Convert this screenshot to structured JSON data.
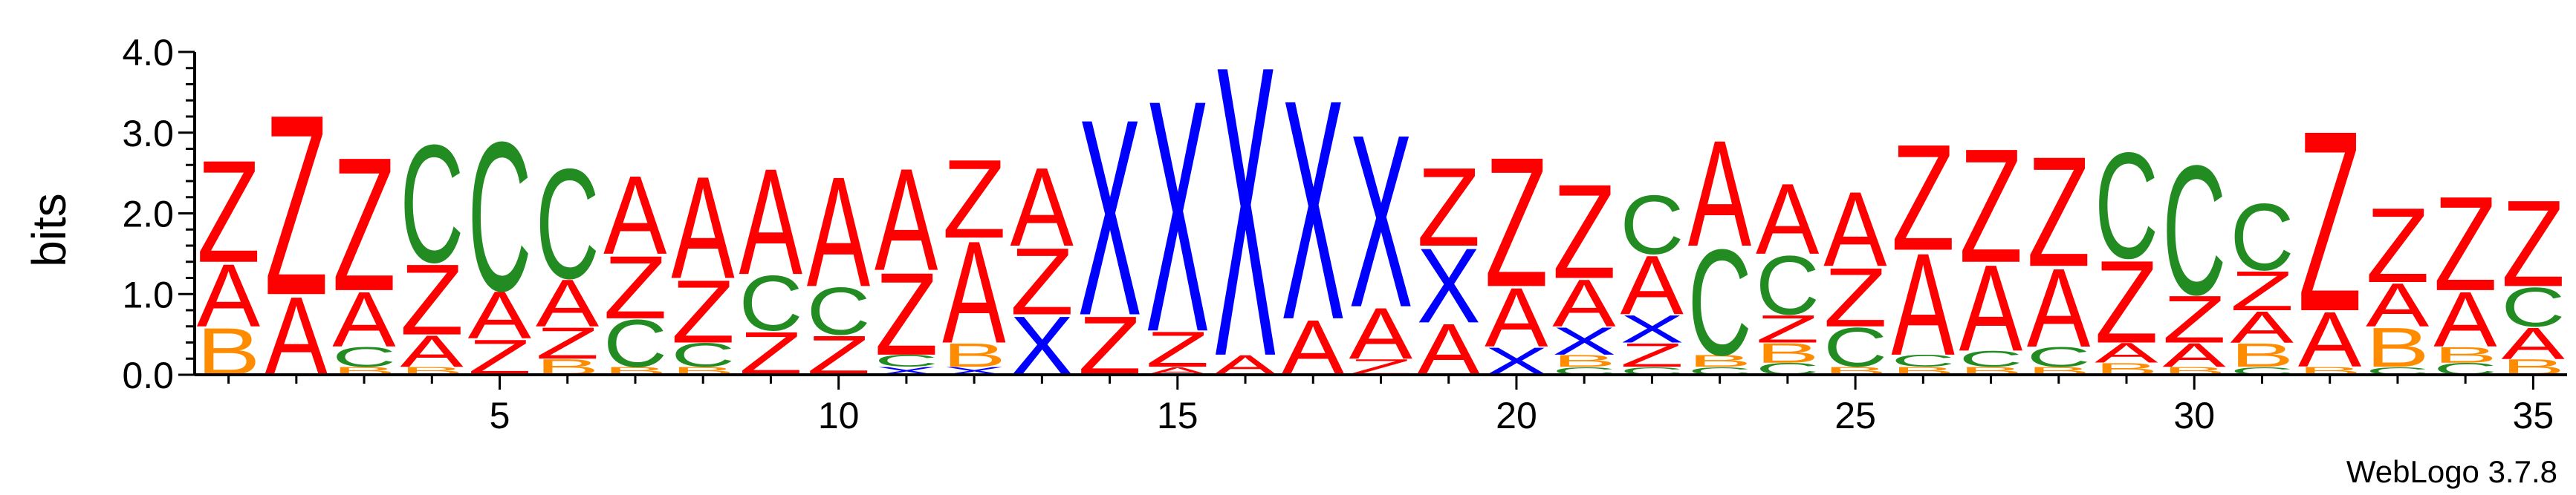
{
  "chart_data": {
    "type": "sequence_logo",
    "ylabel": "bits",
    "ylim": [
      0,
      4.0
    ],
    "y_ticks": [
      {
        "value": 0.0,
        "label": "0.0"
      },
      {
        "value": 1.0,
        "label": "1.0"
      },
      {
        "value": 2.0,
        "label": "2.0"
      },
      {
        "value": 3.0,
        "label": "3.0"
      },
      {
        "value": 4.0,
        "label": "4.0"
      }
    ],
    "x_ticks": [
      5,
      10,
      15,
      20,
      25,
      30,
      35
    ],
    "x_tick_labels": [
      "5",
      "10",
      "15",
      "20",
      "25",
      "30",
      "35"
    ],
    "colors": {
      "Z": "#ff0000",
      "A": "#ff0000",
      "X": "#0000ff",
      "C": "#228b22",
      "B": "#ff8c00"
    },
    "positions": [
      {
        "pos": 1,
        "stack": [
          {
            "l": "B",
            "h": 0.6
          },
          {
            "l": "A",
            "h": 0.8
          },
          {
            "l": "Z",
            "h": 1.3
          }
        ]
      },
      {
        "pos": 2,
        "stack": [
          {
            "l": "A",
            "h": 1.0
          },
          {
            "l": "Z",
            "h": 2.3
          }
        ]
      },
      {
        "pos": 3,
        "stack": [
          {
            "l": "B",
            "h": 0.1
          },
          {
            "l": "C",
            "h": 0.25
          },
          {
            "l": "A",
            "h": 0.7
          },
          {
            "l": "Z",
            "h": 1.7
          }
        ]
      },
      {
        "pos": 4,
        "stack": [
          {
            "l": "B",
            "h": 0.1
          },
          {
            "l": "A",
            "h": 0.4
          },
          {
            "l": "Z",
            "h": 0.9
          },
          {
            "l": "C",
            "h": 1.5
          }
        ]
      },
      {
        "pos": 5,
        "stack": [
          {
            "l": "Z",
            "h": 0.45
          },
          {
            "l": "A",
            "h": 0.6
          },
          {
            "l": "C",
            "h": 1.9
          }
        ]
      },
      {
        "pos": 6,
        "stack": [
          {
            "l": "B",
            "h": 0.2
          },
          {
            "l": "Z",
            "h": 0.4
          },
          {
            "l": "A",
            "h": 0.6
          },
          {
            "l": "C",
            "h": 1.4
          }
        ]
      },
      {
        "pos": 7,
        "stack": [
          {
            "l": "B",
            "h": 0.1
          },
          {
            "l": "C",
            "h": 0.6
          },
          {
            "l": "Z",
            "h": 0.8
          },
          {
            "l": "A",
            "h": 1.0
          }
        ]
      },
      {
        "pos": 8,
        "stack": [
          {
            "l": "B",
            "h": 0.1
          },
          {
            "l": "C",
            "h": 0.3
          },
          {
            "l": "Z",
            "h": 0.8
          },
          {
            "l": "A",
            "h": 1.3
          }
        ]
      },
      {
        "pos": 9,
        "stack": [
          {
            "l": "Z",
            "h": 0.55
          },
          {
            "l": "C",
            "h": 0.7
          },
          {
            "l": "A",
            "h": 1.35
          }
        ]
      },
      {
        "pos": 10,
        "stack": [
          {
            "l": "Z",
            "h": 0.5
          },
          {
            "l": "C",
            "h": 0.6
          },
          {
            "l": "A",
            "h": 1.4
          }
        ]
      },
      {
        "pos": 11,
        "stack": [
          {
            "l": "X",
            "h": 0.1
          },
          {
            "l": "C",
            "h": 0.15
          },
          {
            "l": "Z",
            "h": 1.05
          },
          {
            "l": "A",
            "h": 1.3
          }
        ]
      },
      {
        "pos": 12,
        "stack": [
          {
            "l": "X",
            "h": 0.1
          },
          {
            "l": "B",
            "h": 0.3
          },
          {
            "l": "A",
            "h": 1.3
          },
          {
            "l": "Z",
            "h": 1.0
          }
        ]
      },
      {
        "pos": 13,
        "stack": [
          {
            "l": "X",
            "h": 0.75
          },
          {
            "l": "Z",
            "h": 0.85
          },
          {
            "l": "A",
            "h": 1.0
          }
        ]
      },
      {
        "pos": 14,
        "stack": [
          {
            "l": "Z",
            "h": 0.75
          },
          {
            "l": "X",
            "h": 2.5
          }
        ]
      },
      {
        "pos": 15,
        "stack": [
          {
            "l": "A",
            "h": 0.1
          },
          {
            "l": "Z",
            "h": 0.45
          },
          {
            "l": "X",
            "h": 2.95
          }
        ]
      },
      {
        "pos": 16,
        "stack": [
          {
            "l": "A",
            "h": 0.25
          },
          {
            "l": "X",
            "h": 3.7
          }
        ]
      },
      {
        "pos": 17,
        "stack": [
          {
            "l": "A",
            "h": 0.7
          },
          {
            "l": "X",
            "h": 2.8
          }
        ]
      },
      {
        "pos": 18,
        "stack": [
          {
            "l": "Z",
            "h": 0.2
          },
          {
            "l": "A",
            "h": 0.65
          },
          {
            "l": "X",
            "h": 2.2
          }
        ]
      },
      {
        "pos": 19,
        "stack": [
          {
            "l": "A",
            "h": 0.65
          },
          {
            "l": "X",
            "h": 0.95
          },
          {
            "l": "Z",
            "h": 1.0
          }
        ]
      },
      {
        "pos": 20,
        "stack": [
          {
            "l": "X",
            "h": 0.35
          },
          {
            "l": "A",
            "h": 0.75
          },
          {
            "l": "Z",
            "h": 1.65
          }
        ]
      },
      {
        "pos": 21,
        "stack": [
          {
            "l": "C",
            "h": 0.1
          },
          {
            "l": "B",
            "h": 0.15
          },
          {
            "l": "X",
            "h": 0.35
          },
          {
            "l": "A",
            "h": 0.6
          },
          {
            "l": "Z",
            "h": 1.2
          }
        ]
      },
      {
        "pos": 22,
        "stack": [
          {
            "l": "C",
            "h": 0.1
          },
          {
            "l": "Z",
            "h": 0.3
          },
          {
            "l": "X",
            "h": 0.35
          },
          {
            "l": "A",
            "h": 0.75
          },
          {
            "l": "C",
            "h": 0.75
          }
        ]
      },
      {
        "pos": 23,
        "stack": [
          {
            "l": "C",
            "h": 0.1
          },
          {
            "l": "B",
            "h": 0.15
          },
          {
            "l": "C",
            "h": 1.35
          },
          {
            "l": "A",
            "h": 1.35
          }
        ]
      },
      {
        "pos": 24,
        "stack": [
          {
            "l": "C",
            "h": 0.15
          },
          {
            "l": "B",
            "h": 0.25
          },
          {
            "l": "Z",
            "h": 0.35
          },
          {
            "l": "C",
            "h": 0.75
          },
          {
            "l": "A",
            "h": 0.9
          }
        ]
      },
      {
        "pos": 25,
        "stack": [
          {
            "l": "B",
            "h": 0.1
          },
          {
            "l": "C",
            "h": 0.5
          },
          {
            "l": "Z",
            "h": 0.75
          },
          {
            "l": "A",
            "h": 0.95
          }
        ]
      },
      {
        "pos": 26,
        "stack": [
          {
            "l": "B",
            "h": 0.1
          },
          {
            "l": "C",
            "h": 0.15
          },
          {
            "l": "A",
            "h": 1.3
          },
          {
            "l": "Z",
            "h": 1.35
          }
        ]
      },
      {
        "pos": 27,
        "stack": [
          {
            "l": "B",
            "h": 0.1
          },
          {
            "l": "C",
            "h": 0.2
          },
          {
            "l": "A",
            "h": 1.1
          },
          {
            "l": "Z",
            "h": 1.45
          }
        ]
      },
      {
        "pos": 28,
        "stack": [
          {
            "l": "B",
            "h": 0.1
          },
          {
            "l": "C",
            "h": 0.25
          },
          {
            "l": "A",
            "h": 1.0
          },
          {
            "l": "Z",
            "h": 1.4
          }
        ]
      },
      {
        "pos": 29,
        "stack": [
          {
            "l": "B",
            "h": 0.15
          },
          {
            "l": "A",
            "h": 0.25
          },
          {
            "l": "Z",
            "h": 1.05
          },
          {
            "l": "C",
            "h": 1.35
          }
        ]
      },
      {
        "pos": 30,
        "stack": [
          {
            "l": "B",
            "h": 0.1
          },
          {
            "l": "A",
            "h": 0.3
          },
          {
            "l": "Z",
            "h": 0.6
          },
          {
            "l": "C",
            "h": 1.65
          }
        ]
      },
      {
        "pos": 31,
        "stack": [
          {
            "l": "C",
            "h": 0.1
          },
          {
            "l": "B",
            "h": 0.3
          },
          {
            "l": "A",
            "h": 0.4
          },
          {
            "l": "Z",
            "h": 0.5
          },
          {
            "l": "C",
            "h": 0.85
          }
        ]
      },
      {
        "pos": 32,
        "stack": [
          {
            "l": "B",
            "h": 0.1
          },
          {
            "l": "A",
            "h": 0.7
          },
          {
            "l": "Z",
            "h": 2.3
          }
        ]
      },
      {
        "pos": 33,
        "stack": [
          {
            "l": "C",
            "h": 0.1
          },
          {
            "l": "B",
            "h": 0.5
          },
          {
            "l": "A",
            "h": 0.55
          },
          {
            "l": "Z",
            "h": 0.95
          }
        ]
      },
      {
        "pos": 34,
        "stack": [
          {
            "l": "C",
            "h": 0.15
          },
          {
            "l": "B",
            "h": 0.2
          },
          {
            "l": "A",
            "h": 0.7
          },
          {
            "l": "Z",
            "h": 1.2
          }
        ]
      },
      {
        "pos": 35,
        "stack": [
          {
            "l": "B",
            "h": 0.2
          },
          {
            "l": "A",
            "h": 0.4
          },
          {
            "l": "C",
            "h": 0.5
          },
          {
            "l": "Z",
            "h": 1.1
          }
        ]
      }
    ]
  },
  "footer": {
    "version_label": "WebLogo 3.7.8"
  }
}
